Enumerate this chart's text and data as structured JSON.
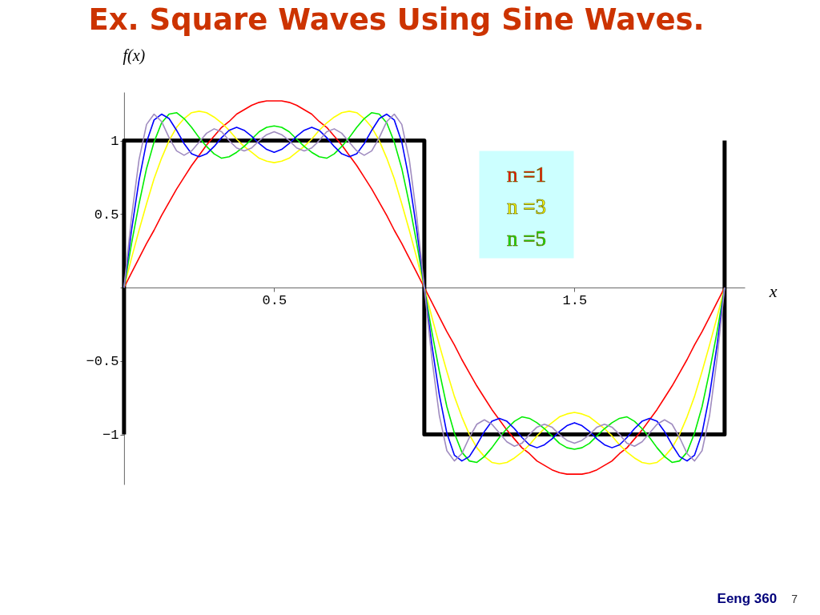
{
  "chart_data": {
    "type": "line",
    "title": "Ex. Square Waves Using Sine Waves.",
    "xlabel": "x",
    "ylabel": "f(x)",
    "annotations": [
      "Eeng 360",
      "7"
    ],
    "xlim": [
      -0.013,
      2.067
    ],
    "ylim": [
      -1.34,
      1.33
    ],
    "xticks": [
      0.5,
      1.5
    ],
    "yticks": [
      -1,
      -0.5,
      0.5,
      1
    ],
    "grid": false,
    "legend": "top right",
    "line_style": "solid",
    "marker": "none",
    "x": [
      0,
      0.025,
      0.05,
      0.075,
      0.1,
      0.125,
      0.15,
      0.175,
      0.2,
      0.225,
      0.25,
      0.275,
      0.3,
      0.325,
      0.35,
      0.375,
      0.4,
      0.425,
      0.45,
      0.475,
      0.5,
      0.525,
      0.55,
      0.575,
      0.6,
      0.625,
      0.65,
      0.675,
      0.7,
      0.725,
      0.75,
      0.775,
      0.8,
      0.825,
      0.85,
      0.875,
      0.9,
      0.925,
      0.95,
      0.975,
      1,
      1.025,
      1.05,
      1.075,
      1.1,
      1.125,
      1.15,
      1.175,
      1.2,
      1.225,
      1.25,
      1.275,
      1.3,
      1.325,
      1.35,
      1.375,
      1.4,
      1.425,
      1.45,
      1.475,
      1.5,
      1.525,
      1.55,
      1.575,
      1.6,
      1.625,
      1.65,
      1.675,
      1.7,
      1.725,
      1.75,
      1.775,
      1.8,
      1.825,
      1.85,
      1.875,
      1.9,
      1.925,
      1.95,
      1.975,
      2
    ],
    "series": [
      {
        "type": "line",
        "color": "#000000",
        "x": [
          0,
          0,
          1,
          1,
          2,
          2
        ],
        "values": [
          -1,
          1,
          1,
          -1,
          -1,
          1
        ]
      },
      {
        "name": "n =1",
        "color": "#ff0000",
        "values": [
          0,
          0.1,
          0.2,
          0.3,
          0.39,
          0.49,
          0.58,
          0.67,
          0.75,
          0.83,
          0.9,
          0.97,
          1.03,
          1.09,
          1.13,
          1.18,
          1.21,
          1.24,
          1.26,
          1.27,
          1.27,
          1.27,
          1.26,
          1.24,
          1.21,
          1.18,
          1.13,
          1.09,
          1.03,
          0.97,
          0.9,
          0.83,
          0.75,
          0.67,
          0.58,
          0.49,
          0.39,
          0.3,
          0.2,
          0.1,
          0,
          -0.1,
          -0.2,
          -0.3,
          -0.39,
          -0.49,
          -0.58,
          -0.67,
          -0.75,
          -0.83,
          -0.9,
          -0.97,
          -1.03,
          -1.09,
          -1.13,
          -1.18,
          -1.21,
          -1.24,
          -1.26,
          -1.27,
          -1.27,
          -1.27,
          -1.26,
          -1.24,
          -1.21,
          -1.18,
          -1.13,
          -1.09,
          -1.03,
          -0.97,
          -0.9,
          -0.83,
          -0.75,
          -0.67,
          -0.58,
          -0.49,
          -0.39,
          -0.3,
          -0.2,
          -0.1,
          0
        ]
      },
      {
        "name": "n =3",
        "color": "#ffff00",
        "values": [
          0,
          0.2,
          0.39,
          0.57,
          0.74,
          0.88,
          1.0,
          1.09,
          1.15,
          1.19,
          1.2,
          1.19,
          1.16,
          1.12,
          1.07,
          1.01,
          0.96,
          0.92,
          0.88,
          0.86,
          0.85,
          0.86,
          0.88,
          0.92,
          0.96,
          1.01,
          1.07,
          1.12,
          1.16,
          1.19,
          1.2,
          1.19,
          1.15,
          1.09,
          1.0,
          0.88,
          0.74,
          0.57,
          0.39,
          0.2,
          0,
          -0.2,
          -0.39,
          -0.57,
          -0.74,
          -0.88,
          -1.0,
          -1.09,
          -1.15,
          -1.19,
          -1.2,
          -1.19,
          -1.16,
          -1.12,
          -1.07,
          -1.01,
          -0.96,
          -0.92,
          -0.88,
          -0.86,
          -0.85,
          -0.86,
          -0.88,
          -0.92,
          -0.96,
          -1.01,
          -1.07,
          -1.12,
          -1.16,
          -1.19,
          -1.2,
          -1.19,
          -1.15,
          -1.09,
          -1.0,
          -0.88,
          -0.74,
          -0.57,
          -0.39,
          -0.2,
          0
        ]
      },
      {
        "name": "n =5",
        "color": "#00ee00",
        "values": [
          0,
          0.3,
          0.57,
          0.81,
          0.99,
          1.12,
          1.18,
          1.19,
          1.15,
          1.09,
          1.02,
          0.96,
          0.91,
          0.88,
          0.89,
          0.92,
          0.96,
          1.01,
          1.06,
          1.09,
          1.1,
          1.09,
          1.06,
          1.01,
          0.96,
          0.92,
          0.89,
          0.88,
          0.91,
          0.96,
          1.02,
          1.09,
          1.15,
          1.19,
          1.18,
          1.12,
          0.99,
          0.81,
          0.57,
          0.3,
          0,
          -0.3,
          -0.57,
          -0.81,
          -0.99,
          -1.12,
          -1.18,
          -1.19,
          -1.15,
          -1.09,
          -1.02,
          -0.96,
          -0.91,
          -0.88,
          -0.89,
          -0.92,
          -0.96,
          -1.01,
          -1.06,
          -1.09,
          -1.1,
          -1.09,
          -1.06,
          -1.01,
          -0.96,
          -0.92,
          -0.89,
          -0.88,
          -0.91,
          -0.96,
          -1.02,
          -1.09,
          -1.15,
          -1.19,
          -1.18,
          -1.12,
          -0.99,
          -0.81,
          -0.57,
          -0.3,
          0
        ]
      },
      {
        "color": "#0000ff",
        "values": [
          0,
          0.39,
          0.73,
          0.99,
          1.14,
          1.18,
          1.15,
          1.07,
          0.98,
          0.91,
          0.89,
          0.91,
          0.96,
          1.02,
          1.07,
          1.09,
          1.07,
          1.03,
          0.98,
          0.94,
          0.92,
          0.94,
          0.98,
          1.03,
          1.07,
          1.09,
          1.07,
          1.02,
          0.96,
          0.91,
          0.89,
          0.91,
          0.98,
          1.07,
          1.15,
          1.18,
          1.14,
          0.99,
          0.73,
          0.39,
          0,
          -0.39,
          -0.73,
          -0.99,
          -1.14,
          -1.18,
          -1.15,
          -1.07,
          -0.98,
          -0.91,
          -0.89,
          -0.91,
          -0.96,
          -1.02,
          -1.07,
          -1.09,
          -1.07,
          -1.03,
          -0.98,
          -0.94,
          -0.92,
          -0.94,
          -0.98,
          -1.03,
          -1.07,
          -1.09,
          -1.07,
          -1.02,
          -0.96,
          -0.91,
          -0.89,
          -0.91,
          -0.98,
          -1.07,
          -1.15,
          -1.18,
          -1.14,
          -0.99,
          -0.73,
          -0.39,
          0
        ]
      },
      {
        "color": "#a08cc0",
        "values": [
          0,
          0.48,
          0.87,
          1.11,
          1.18,
          1.13,
          1.02,
          0.93,
          0.9,
          0.93,
          0.99,
          1.05,
          1.08,
          1.06,
          1.0,
          0.95,
          0.93,
          0.95,
          1.0,
          1.04,
          1.06,
          1.04,
          1.0,
          0.95,
          0.93,
          0.95,
          1.0,
          1.06,
          1.08,
          1.05,
          0.99,
          0.93,
          0.9,
          0.93,
          1.02,
          1.13,
          1.18,
          1.11,
          0.87,
          0.48,
          0,
          -0.48,
          -0.87,
          -1.11,
          -1.18,
          -1.13,
          -1.02,
          -0.93,
          -0.9,
          -0.93,
          -0.99,
          -1.05,
          -1.08,
          -1.06,
          -1.0,
          -0.95,
          -0.93,
          -0.95,
          -1.0,
          -1.04,
          -1.06,
          -1.04,
          -1.0,
          -0.95,
          -0.93,
          -0.95,
          -1.0,
          -1.06,
          -1.08,
          -1.05,
          -0.99,
          -0.93,
          -0.9,
          -0.93,
          -1.02,
          -1.13,
          -1.18,
          -1.11,
          -0.87,
          -0.48,
          0
        ]
      }
    ]
  }
}
